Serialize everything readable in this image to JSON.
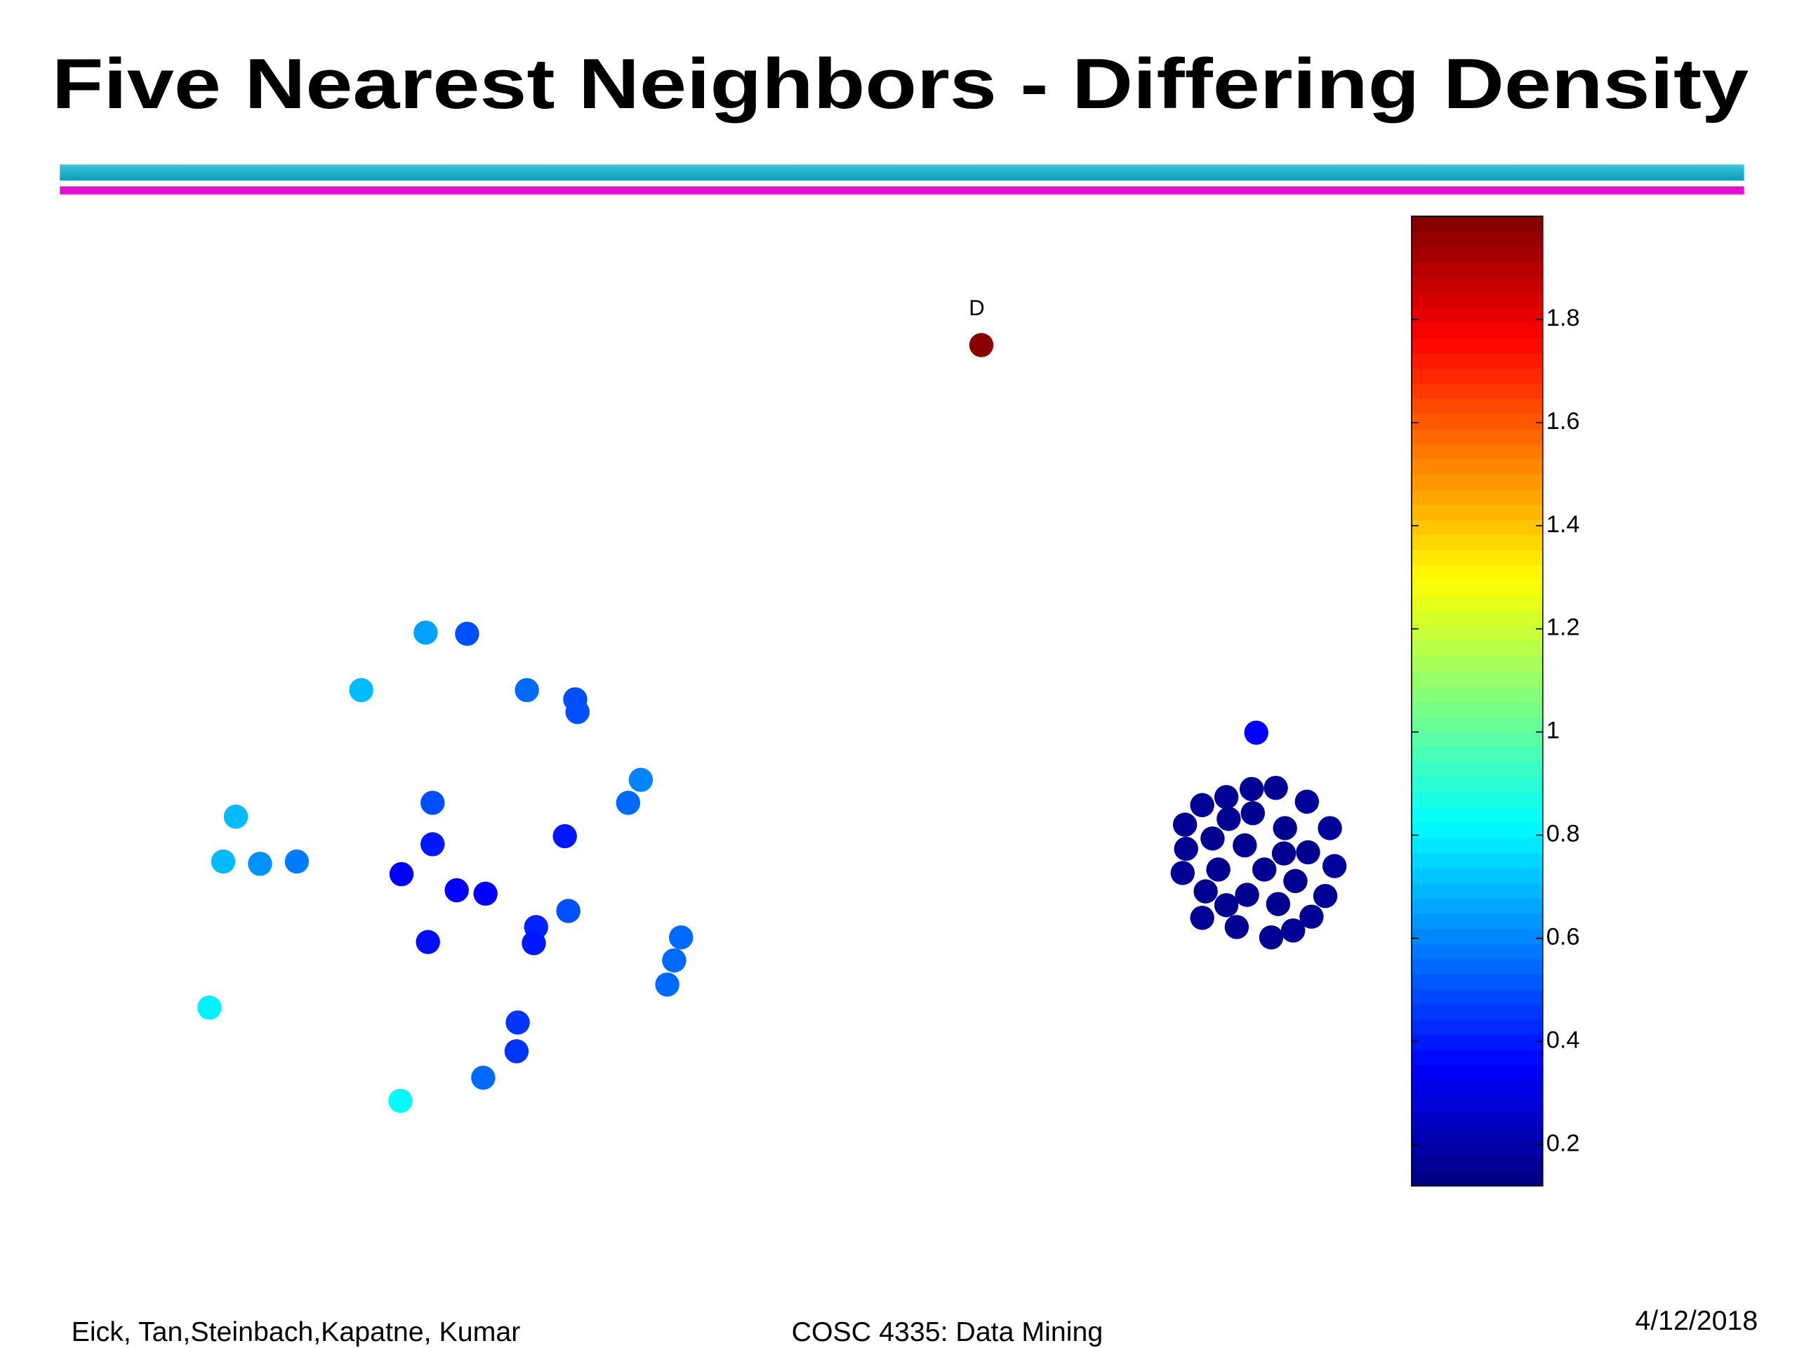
{
  "slide": {
    "title": "Five Nearest Neighbors - Differing Density",
    "footer_left": "Eick, Tan,Steinbach,Kapatne, Kumar",
    "footer_center": "COSC 4335: Data Mining",
    "date": "4/12/2018"
  },
  "chart_data": {
    "type": "scatter",
    "annotation": "D",
    "colormap": "jet",
    "xlim": [
      0,
      1050
    ],
    "ylim": [
      0,
      843
    ],
    "x": [
      703,
      220,
      256,
      164,
      308,
      350,
      352,
      407,
      396,
      226,
      55,
      44,
      76,
      108,
      226,
      341,
      199,
      247,
      272,
      344,
      316,
      314,
      222,
      442,
      436,
      430,
      32,
      300,
      299,
      270,
      198,
      942,
      895,
      916,
      938,
      959,
      986,
      880,
      918,
      939,
      967,
      1006,
      904,
      932,
      881,
      966,
      987,
      1010,
      909,
      949,
      878,
      976,
      898,
      934,
      916,
      961,
      1002,
      895,
      925,
      990,
      974,
      955
    ],
    "y": [
      731,
      481,
      480,
      431,
      431,
      423,
      412,
      353,
      333,
      333,
      321,
      282,
      280,
      282,
      297,
      304,
      271,
      257,
      254,
      239,
      225,
      211,
      212,
      216,
      196,
      175,
      155,
      142,
      117,
      94,
      74,
      394,
      331,
      338,
      345,
      346,
      334,
      314,
      319,
      324,
      311,
      311,
      302,
      296,
      293,
      289,
      290,
      278,
      275,
      275,
      272,
      265,
      256,
      253,
      244,
      245,
      252,
      233,
      225,
      234,
      222,
      216
    ],
    "values": [
      1.98,
      0.65,
      0.5,
      0.7,
      0.55,
      0.5,
      0.5,
      0.6,
      0.55,
      0.5,
      0.7,
      0.7,
      0.62,
      0.58,
      0.4,
      0.4,
      0.35,
      0.35,
      0.35,
      0.5,
      0.42,
      0.4,
      0.38,
      0.55,
      0.55,
      0.55,
      0.8,
      0.45,
      0.45,
      0.55,
      0.82,
      0.35,
      0.16,
      0.16,
      0.16,
      0.16,
      0.17,
      0.16,
      0.15,
      0.15,
      0.15,
      0.17,
      0.15,
      0.15,
      0.16,
      0.15,
      0.15,
      0.17,
      0.15,
      0.15,
      0.16,
      0.15,
      0.15,
      0.15,
      0.15,
      0.15,
      0.16,
      0.16,
      0.16,
      0.16,
      0.16,
      0.16
    ],
    "clim": [
      0.12,
      2
    ],
    "cticks": [
      0.2,
      0.4,
      0.6,
      0.8,
      1,
      1.2,
      1.4,
      1.6,
      1.8
    ]
  }
}
